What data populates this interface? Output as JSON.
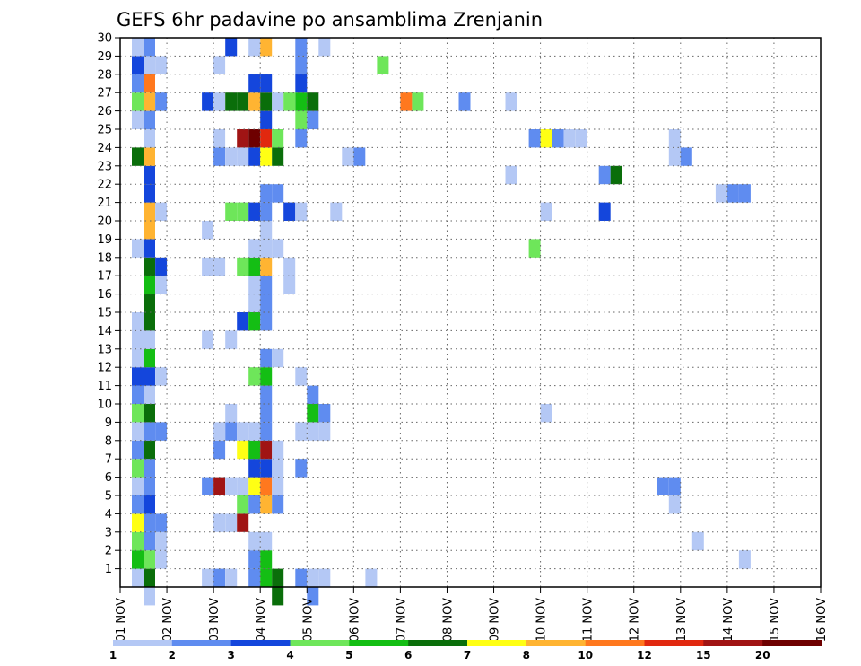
{
  "chart_data": {
    "type": "heatmap",
    "title": "GEFS 6hr padavine po ansamblima Zrenjanin",
    "xlabel": "",
    "ylabel": "",
    "x_ticks": [
      "01 NOV",
      "02 NOV",
      "03 NOV",
      "04 NOV",
      "05 NOV",
      "06 NOV",
      "07 NOV",
      "08 NOV",
      "09 NOV",
      "10 NOV",
      "11 NOV",
      "12 NOV",
      "13 NOV",
      "14 NOV",
      "15 NOV",
      "16 NOV"
    ],
    "y_ticks": [
      "1",
      "2",
      "3",
      "4",
      "5",
      "6",
      "7",
      "8",
      "9",
      "10",
      "11",
      "12",
      "13",
      "14",
      "15",
      "16",
      "17",
      "18",
      "19",
      "20",
      "21",
      "22",
      "23",
      "24",
      "25",
      "26",
      "27",
      "28",
      "29",
      "30"
    ],
    "x_range_days": [
      1,
      16
    ],
    "y_range": [
      0,
      30
    ],
    "grid": true,
    "grid_style": "dotted",
    "cell_width_days": 0.25,
    "legend": {
      "position": "bottom",
      "thresholds": [
        "1",
        "2",
        "3",
        "4",
        "5",
        "6",
        "7",
        "8",
        "10",
        "12",
        "15",
        "20"
      ],
      "colors": [
        "#b4c8f5",
        "#5f8cf0",
        "#1446dc",
        "#6ee65a",
        "#14be14",
        "#0a6e0a",
        "#ffff14",
        "#ffb432",
        "#ff781e",
        "#e1280f",
        "#a01414",
        "#6e0000"
      ]
    },
    "cells": [
      {
        "x": 1.25,
        "y": 0,
        "level": 1
      },
      {
        "x": 1.25,
        "y": 1,
        "level": 5
      },
      {
        "x": 1.25,
        "y": 2,
        "level": 4
      },
      {
        "x": 1.25,
        "y": 3,
        "level": 7
      },
      {
        "x": 1.25,
        "y": 4,
        "level": 2
      },
      {
        "x": 1.25,
        "y": 5,
        "level": 1
      },
      {
        "x": 1.25,
        "y": 6,
        "level": 4
      },
      {
        "x": 1.25,
        "y": 7,
        "level": 2
      },
      {
        "x": 1.25,
        "y": 8,
        "level": 1
      },
      {
        "x": 1.25,
        "y": 9,
        "level": 4
      },
      {
        "x": 1.25,
        "y": 10,
        "level": 2
      },
      {
        "x": 1.25,
        "y": 11,
        "level": 3
      },
      {
        "x": 1.25,
        "y": 12,
        "level": 1
      },
      {
        "x": 1.25,
        "y": 13,
        "level": 1
      },
      {
        "x": 1.25,
        "y": 14,
        "level": 1
      },
      {
        "x": 1.25,
        "y": 18,
        "level": 1
      },
      {
        "x": 1.25,
        "y": 23,
        "level": 6
      },
      {
        "x": 1.25,
        "y": 25,
        "level": 1
      },
      {
        "x": 1.25,
        "y": 26,
        "level": 4
      },
      {
        "x": 1.25,
        "y": 27,
        "level": 2
      },
      {
        "x": 1.25,
        "y": 28,
        "level": 3
      },
      {
        "x": 1.25,
        "y": 29,
        "level": 1
      },
      {
        "x": 1.5,
        "y": -1,
        "level": 1
      },
      {
        "x": 1.5,
        "y": 0,
        "level": 6
      },
      {
        "x": 1.5,
        "y": 1,
        "level": 4
      },
      {
        "x": 1.5,
        "y": 2,
        "level": 2
      },
      {
        "x": 1.5,
        "y": 3,
        "level": 2
      },
      {
        "x": 1.5,
        "y": 4,
        "level": 3
      },
      {
        "x": 1.5,
        "y": 5,
        "level": 2
      },
      {
        "x": 1.5,
        "y": 6,
        "level": 2
      },
      {
        "x": 1.5,
        "y": 7,
        "level": 6
      },
      {
        "x": 1.5,
        "y": 8,
        "level": 2
      },
      {
        "x": 1.5,
        "y": 9,
        "level": 6
      },
      {
        "x": 1.5,
        "y": 10,
        "level": 1
      },
      {
        "x": 1.5,
        "y": 11,
        "level": 3
      },
      {
        "x": 1.5,
        "y": 12,
        "level": 5
      },
      {
        "x": 1.5,
        "y": 13,
        "level": 1
      },
      {
        "x": 1.5,
        "y": 14,
        "level": 6
      },
      {
        "x": 1.5,
        "y": 15,
        "level": 6
      },
      {
        "x": 1.5,
        "y": 16,
        "level": 5
      },
      {
        "x": 1.5,
        "y": 17,
        "level": 6
      },
      {
        "x": 1.5,
        "y": 18,
        "level": 3
      },
      {
        "x": 1.5,
        "y": 19,
        "level": 8
      },
      {
        "x": 1.5,
        "y": 20,
        "level": 8
      },
      {
        "x": 1.5,
        "y": 21,
        "level": 3
      },
      {
        "x": 1.5,
        "y": 22,
        "level": 3
      },
      {
        "x": 1.5,
        "y": 23,
        "level": 8
      },
      {
        "x": 1.5,
        "y": 24,
        "level": 1
      },
      {
        "x": 1.5,
        "y": 25,
        "level": 2
      },
      {
        "x": 1.5,
        "y": 26,
        "level": 8
      },
      {
        "x": 1.5,
        "y": 27,
        "level": 9
      },
      {
        "x": 1.5,
        "y": 28,
        "level": 1
      },
      {
        "x": 1.5,
        "y": 29,
        "level": 2
      },
      {
        "x": 1.75,
        "y": 1,
        "level": 1
      },
      {
        "x": 1.75,
        "y": 2,
        "level": 1
      },
      {
        "x": 1.75,
        "y": 3,
        "level": 2
      },
      {
        "x": 1.75,
        "y": 8,
        "level": 2
      },
      {
        "x": 1.75,
        "y": 11,
        "level": 1
      },
      {
        "x": 1.75,
        "y": 16,
        "level": 1
      },
      {
        "x": 1.75,
        "y": 17,
        "level": 3
      },
      {
        "x": 1.75,
        "y": 20,
        "level": 1
      },
      {
        "x": 1.75,
        "y": 26,
        "level": 2
      },
      {
        "x": 1.75,
        "y": 28,
        "level": 1
      },
      {
        "x": 2.75,
        "y": 0,
        "level": 1
      },
      {
        "x": 2.75,
        "y": 5,
        "level": 2
      },
      {
        "x": 2.75,
        "y": 13,
        "level": 1
      },
      {
        "x": 2.75,
        "y": 17,
        "level": 1
      },
      {
        "x": 2.75,
        "y": 19,
        "level": 1
      },
      {
        "x": 2.75,
        "y": 26,
        "level": 3
      },
      {
        "x": 3.0,
        "y": 0,
        "level": 2
      },
      {
        "x": 3.0,
        "y": 3,
        "level": 1
      },
      {
        "x": 3.0,
        "y": 5,
        "level": 11
      },
      {
        "x": 3.0,
        "y": 7,
        "level": 2
      },
      {
        "x": 3.0,
        "y": 8,
        "level": 1
      },
      {
        "x": 3.0,
        "y": 17,
        "level": 1
      },
      {
        "x": 3.0,
        "y": 23,
        "level": 2
      },
      {
        "x": 3.0,
        "y": 24,
        "level": 1
      },
      {
        "x": 3.0,
        "y": 26,
        "level": 1
      },
      {
        "x": 3.0,
        "y": 28,
        "level": 1
      },
      {
        "x": 3.25,
        "y": 0,
        "level": 1
      },
      {
        "x": 3.25,
        "y": 3,
        "level": 1
      },
      {
        "x": 3.25,
        "y": 5,
        "level": 1
      },
      {
        "x": 3.25,
        "y": 8,
        "level": 2
      },
      {
        "x": 3.25,
        "y": 9,
        "level": 1
      },
      {
        "x": 3.25,
        "y": 13,
        "level": 1
      },
      {
        "x": 3.25,
        "y": 20,
        "level": 4
      },
      {
        "x": 3.25,
        "y": 23,
        "level": 1
      },
      {
        "x": 3.25,
        "y": 26,
        "level": 6
      },
      {
        "x": 3.25,
        "y": 29,
        "level": 3
      },
      {
        "x": 3.5,
        "y": 3,
        "level": 11
      },
      {
        "x": 3.5,
        "y": 4,
        "level": 4
      },
      {
        "x": 3.5,
        "y": 5,
        "level": 1
      },
      {
        "x": 3.5,
        "y": 7,
        "level": 7
      },
      {
        "x": 3.5,
        "y": 8,
        "level": 1
      },
      {
        "x": 3.5,
        "y": 14,
        "level": 3
      },
      {
        "x": 3.5,
        "y": 17,
        "level": 4
      },
      {
        "x": 3.5,
        "y": 20,
        "level": 4
      },
      {
        "x": 3.5,
        "y": 23,
        "level": 1
      },
      {
        "x": 3.5,
        "y": 24,
        "level": 11
      },
      {
        "x": 3.5,
        "y": 26,
        "level": 6
      },
      {
        "x": 3.75,
        "y": 0,
        "level": 2
      },
      {
        "x": 3.75,
        "y": 1,
        "level": 2
      },
      {
        "x": 3.75,
        "y": 2,
        "level": 1
      },
      {
        "x": 3.75,
        "y": 4,
        "level": 2
      },
      {
        "x": 3.75,
        "y": 5,
        "level": 7
      },
      {
        "x": 3.75,
        "y": 6,
        "level": 3
      },
      {
        "x": 3.75,
        "y": 7,
        "level": 5
      },
      {
        "x": 3.75,
        "y": 8,
        "level": 1
      },
      {
        "x": 3.75,
        "y": 11,
        "level": 4
      },
      {
        "x": 3.75,
        "y": 14,
        "level": 5
      },
      {
        "x": 3.75,
        "y": 15,
        "level": 1
      },
      {
        "x": 3.75,
        "y": 16,
        "level": 1
      },
      {
        "x": 3.75,
        "y": 17,
        "level": 5
      },
      {
        "x": 3.75,
        "y": 18,
        "level": 1
      },
      {
        "x": 3.75,
        "y": 20,
        "level": 3
      },
      {
        "x": 3.75,
        "y": 23,
        "level": 3
      },
      {
        "x": 3.75,
        "y": 24,
        "level": 12
      },
      {
        "x": 3.75,
        "y": 26,
        "level": 8
      },
      {
        "x": 3.75,
        "y": 27,
        "level": 3
      },
      {
        "x": 3.75,
        "y": 29,
        "level": 1
      },
      {
        "x": 4.0,
        "y": 0,
        "level": 5
      },
      {
        "x": 4.0,
        "y": 1,
        "level": 5
      },
      {
        "x": 4.0,
        "y": 2,
        "level": 1
      },
      {
        "x": 4.0,
        "y": 4,
        "level": 8
      },
      {
        "x": 4.0,
        "y": 5,
        "level": 9
      },
      {
        "x": 4.0,
        "y": 6,
        "level": 3
      },
      {
        "x": 4.0,
        "y": 7,
        "level": 11
      },
      {
        "x": 4.0,
        "y": 8,
        "level": 2
      },
      {
        "x": 4.0,
        "y": 9,
        "level": 2
      },
      {
        "x": 4.0,
        "y": 10,
        "level": 2
      },
      {
        "x": 4.0,
        "y": 11,
        "level": 5
      },
      {
        "x": 4.0,
        "y": 12,
        "level": 2
      },
      {
        "x": 4.0,
        "y": 14,
        "level": 2
      },
      {
        "x": 4.0,
        "y": 15,
        "level": 2
      },
      {
        "x": 4.0,
        "y": 16,
        "level": 2
      },
      {
        "x": 4.0,
        "y": 17,
        "level": 8
      },
      {
        "x": 4.0,
        "y": 18,
        "level": 1
      },
      {
        "x": 4.0,
        "y": 19,
        "level": 1
      },
      {
        "x": 4.0,
        "y": 20,
        "level": 2
      },
      {
        "x": 4.0,
        "y": 21,
        "level": 2
      },
      {
        "x": 4.0,
        "y": 23,
        "level": 7
      },
      {
        "x": 4.0,
        "y": 24,
        "level": 10
      },
      {
        "x": 4.0,
        "y": 25,
        "level": 3
      },
      {
        "x": 4.0,
        "y": 26,
        "level": 6
      },
      {
        "x": 4.0,
        "y": 27,
        "level": 3
      },
      {
        "x": 4.0,
        "y": 29,
        "level": 8
      },
      {
        "x": 4.25,
        "y": -1,
        "level": 6
      },
      {
        "x": 4.25,
        "y": 0,
        "level": 6
      },
      {
        "x": 4.25,
        "y": 4,
        "level": 2
      },
      {
        "x": 4.25,
        "y": 5,
        "level": 1
      },
      {
        "x": 4.25,
        "y": 6,
        "level": 1
      },
      {
        "x": 4.25,
        "y": 7,
        "level": 1
      },
      {
        "x": 4.25,
        "y": 12,
        "level": 1
      },
      {
        "x": 4.25,
        "y": 18,
        "level": 1
      },
      {
        "x": 4.25,
        "y": 21,
        "level": 2
      },
      {
        "x": 4.25,
        "y": 23,
        "level": 6
      },
      {
        "x": 4.25,
        "y": 24,
        "level": 4
      },
      {
        "x": 4.25,
        "y": 26,
        "level": 1
      },
      {
        "x": 4.5,
        "y": 16,
        "level": 1
      },
      {
        "x": 4.5,
        "y": 17,
        "level": 1
      },
      {
        "x": 4.5,
        "y": 20,
        "level": 3
      },
      {
        "x": 4.5,
        "y": 26,
        "level": 4
      },
      {
        "x": 4.75,
        "y": 0,
        "level": 2
      },
      {
        "x": 4.75,
        "y": 6,
        "level": 2
      },
      {
        "x": 4.75,
        "y": 8,
        "level": 1
      },
      {
        "x": 4.75,
        "y": 11,
        "level": 1
      },
      {
        "x": 4.75,
        "y": 20,
        "level": 1
      },
      {
        "x": 4.75,
        "y": 24,
        "level": 2
      },
      {
        "x": 4.75,
        "y": 25,
        "level": 4
      },
      {
        "x": 4.75,
        "y": 26,
        "level": 5
      },
      {
        "x": 4.75,
        "y": 27,
        "level": 3
      },
      {
        "x": 4.75,
        "y": 28,
        "level": 2
      },
      {
        "x": 4.75,
        "y": 29,
        "level": 2
      },
      {
        "x": 5.0,
        "y": -1,
        "level": 2
      },
      {
        "x": 5.0,
        "y": 0,
        "level": 1
      },
      {
        "x": 5.0,
        "y": 8,
        "level": 1
      },
      {
        "x": 5.0,
        "y": 9,
        "level": 5
      },
      {
        "x": 5.0,
        "y": 10,
        "level": 2
      },
      {
        "x": 5.0,
        "y": 25,
        "level": 2
      },
      {
        "x": 5.0,
        "y": 26,
        "level": 6
      },
      {
        "x": 5.25,
        "y": 0,
        "level": 1
      },
      {
        "x": 5.25,
        "y": 8,
        "level": 1
      },
      {
        "x": 5.25,
        "y": 9,
        "level": 2
      },
      {
        "x": 5.25,
        "y": 29,
        "level": 1
      },
      {
        "x": 5.5,
        "y": 20,
        "level": 1
      },
      {
        "x": 5.75,
        "y": 23,
        "level": 1
      },
      {
        "x": 6.0,
        "y": 23,
        "level": 2
      },
      {
        "x": 6.25,
        "y": 0,
        "level": 1
      },
      {
        "x": 6.5,
        "y": 28,
        "level": 4
      },
      {
        "x": 7.0,
        "y": 26,
        "level": 9
      },
      {
        "x": 7.25,
        "y": 26,
        "level": 4
      },
      {
        "x": 8.25,
        "y": 26,
        "level": 2
      },
      {
        "x": 9.25,
        "y": 22,
        "level": 1
      },
      {
        "x": 9.25,
        "y": 26,
        "level": 1
      },
      {
        "x": 9.75,
        "y": 18,
        "level": 4
      },
      {
        "x": 9.75,
        "y": 24,
        "level": 2
      },
      {
        "x": 10.0,
        "y": 9,
        "level": 1
      },
      {
        "x": 10.0,
        "y": 20,
        "level": 1
      },
      {
        "x": 10.0,
        "y": 24,
        "level": 7
      },
      {
        "x": 10.25,
        "y": 24,
        "level": 2
      },
      {
        "x": 10.5,
        "y": 24,
        "level": 1
      },
      {
        "x": 10.75,
        "y": 24,
        "level": 1
      },
      {
        "x": 11.25,
        "y": 20,
        "level": 3
      },
      {
        "x": 11.25,
        "y": 22,
        "level": 2
      },
      {
        "x": 11.5,
        "y": 22,
        "level": 6
      },
      {
        "x": 12.5,
        "y": 5,
        "level": 2
      },
      {
        "x": 12.75,
        "y": 4,
        "level": 1
      },
      {
        "x": 12.75,
        "y": 5,
        "level": 2
      },
      {
        "x": 12.75,
        "y": 23,
        "level": 1
      },
      {
        "x": 12.75,
        "y": 24,
        "level": 1
      },
      {
        "x": 13.0,
        "y": 23,
        "level": 2
      },
      {
        "x": 13.25,
        "y": 2,
        "level": 1
      },
      {
        "x": 13.75,
        "y": 21,
        "level": 1
      },
      {
        "x": 14.0,
        "y": 21,
        "level": 2
      },
      {
        "x": 14.25,
        "y": 21,
        "level": 2
      },
      {
        "x": 14.25,
        "y": 1,
        "level": 1
      }
    ]
  }
}
